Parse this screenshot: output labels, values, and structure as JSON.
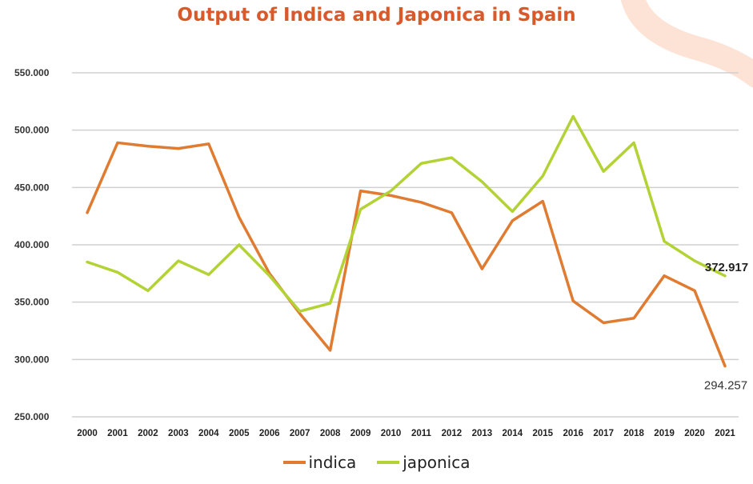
{
  "chart_data": {
    "type": "line",
    "title": "Output of Indica and Japonica in Spain",
    "x": [
      "2000",
      "2001",
      "2002",
      "2003",
      "2004",
      "2005",
      "2006",
      "2007",
      "2008",
      "2009",
      "2010",
      "2011",
      "2012",
      "2013",
      "2014",
      "2015",
      "2016",
      "2017",
      "2018",
      "2019",
      "2020",
      "2021"
    ],
    "series": [
      {
        "name": "indica",
        "color": "#e07b32",
        "values": [
          428000,
          489000,
          486000,
          484000,
          488000,
          424000,
          375000,
          340000,
          308000,
          447000,
          443000,
          437000,
          428000,
          379000,
          421000,
          438000,
          351000,
          332000,
          336000,
          373000,
          360000,
          294257
        ]
      },
      {
        "name": "japonica",
        "color": "#b2d235",
        "values": [
          385000,
          376000,
          360000,
          386000,
          374000,
          400000,
          373000,
          342000,
          349000,
          431000,
          447000,
          471000,
          476000,
          455000,
          429000,
          460000,
          512000,
          464000,
          489000,
          403000,
          386000,
          372917
        ]
      }
    ],
    "ylim": [
      250000,
      550000
    ],
    "y_ticks": [
      {
        "value": 550000,
        "label": "550.000"
      },
      {
        "value": 500000,
        "label": "500.000"
      },
      {
        "value": 450000,
        "label": "450.000"
      },
      {
        "value": 400000,
        "label": "400.000"
      },
      {
        "value": 350000,
        "label": "350.000"
      },
      {
        "value": 300000,
        "label": "300.000"
      },
      {
        "value": 250000,
        "label": "250.000"
      }
    ],
    "annotations": [
      {
        "text": "372.917",
        "series": "japonica",
        "x": "2021",
        "value": 372917
      },
      {
        "text": "294.257",
        "series": "indica",
        "x": "2021",
        "value": 294257
      }
    ],
    "grid": true,
    "legend": "bottom",
    "title_color": "#d9592a",
    "grid_color": "#d0d0d0"
  }
}
